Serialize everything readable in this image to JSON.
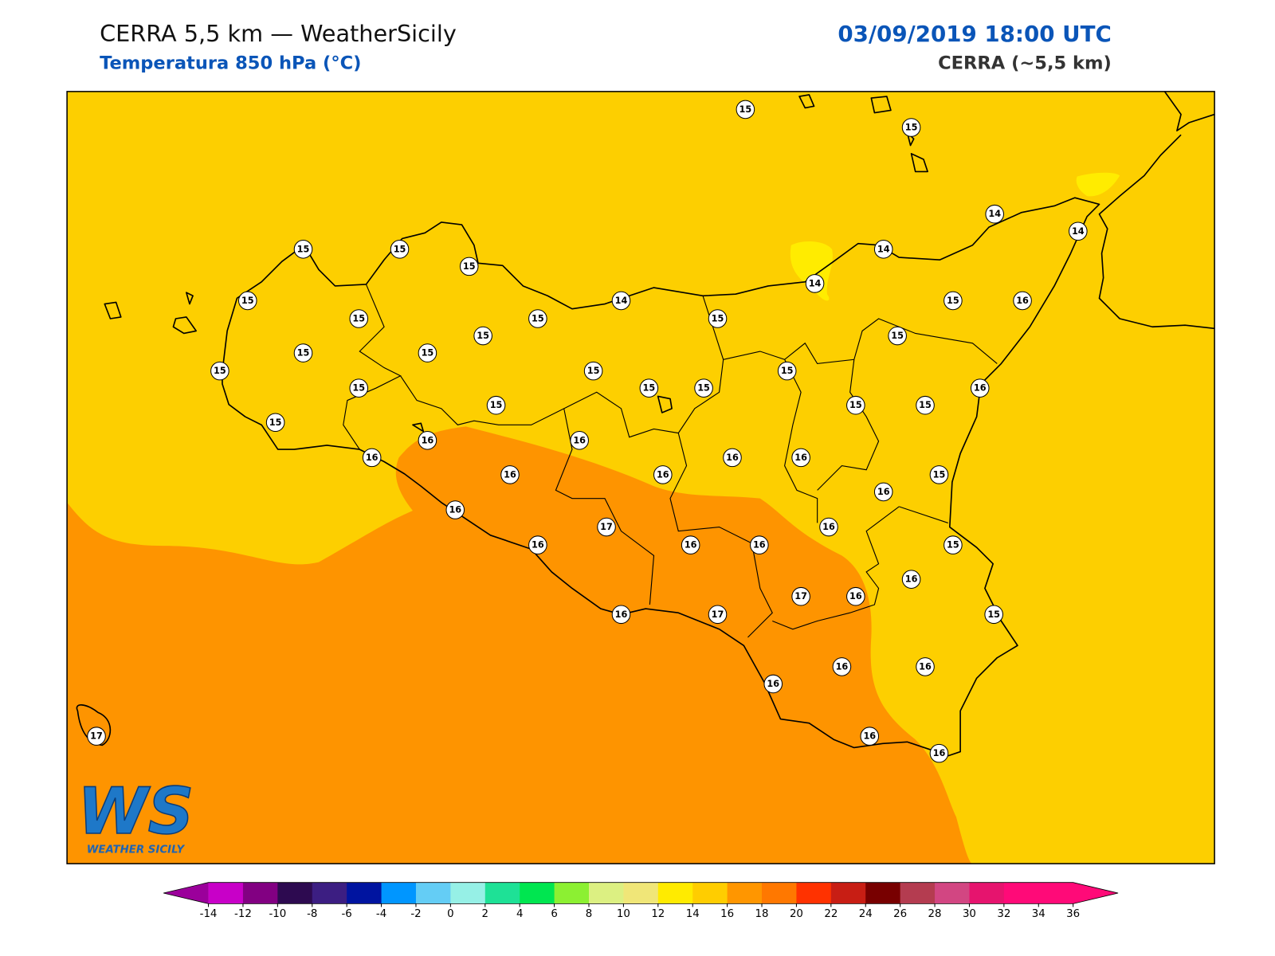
{
  "header": {
    "title": "CERRA 5,5 km — WeatherSicily",
    "subtitle": "Temperatura 850 hPa (°C)",
    "date": "03/09/2019 18:00 UTC",
    "model": "CERRA (~5,5 km)"
  },
  "map": {
    "labels": [
      15,
      15,
      14,
      14,
      15,
      15,
      15,
      14,
      14,
      15,
      14,
      15,
      16,
      15,
      15,
      15,
      15,
      15,
      15,
      15,
      15,
      15,
      15,
      15,
      15,
      15,
      16,
      15,
      15,
      15,
      15,
      16,
      16,
      16,
      16,
      16,
      16,
      16,
      15,
      16,
      16,
      16,
      17,
      16,
      16,
      16,
      15,
      16,
      17,
      16,
      16,
      17,
      15,
      16,
      16,
      16,
      17,
      16,
      16
    ]
  },
  "logo": {
    "letters": "WS",
    "text": "WEATHER SICILY"
  },
  "colorbar": {
    "ticks": [
      -14,
      -12,
      -10,
      -8,
      -6,
      -4,
      -2,
      0,
      2,
      4,
      6,
      8,
      10,
      12,
      14,
      16,
      18,
      20,
      22,
      24,
      26,
      28,
      30,
      32,
      34,
      36
    ],
    "under": "#9b009b",
    "colors": [
      "#c800c8",
      "#820082",
      "#2d0a50",
      "#3c1e82",
      "#0014a0",
      "#0096ff",
      "#64cdf5",
      "#96f0e6",
      "#1ee196",
      "#00e650",
      "#8cf032",
      "#dcf082",
      "#f0e678",
      "#ffeb00",
      "#ffcd00",
      "#ff9600",
      "#ff7800",
      "#ff3200",
      "#c81e14",
      "#780000",
      "#b43c50",
      "#d24682",
      "#e6146e",
      "#ff0a78",
      "#ff0a78"
    ],
    "over": "#ff0a78"
  }
}
